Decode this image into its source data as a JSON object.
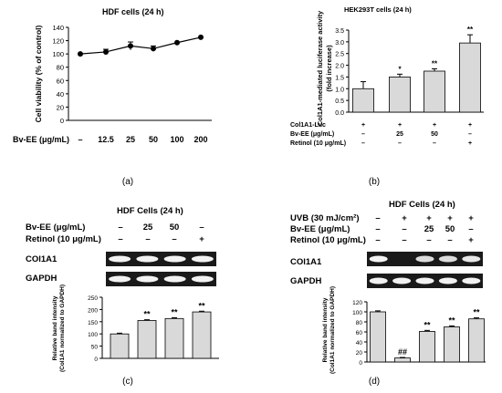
{
  "chart_data": [
    {
      "id": "a",
      "type": "line",
      "title": "HDF cells (24 h)",
      "ylabel": "Cell viability (% of control)",
      "xlabel": "Bv-EE (μg/mL)",
      "categories": [
        "–",
        "12.5",
        "25",
        "50",
        "100",
        "200"
      ],
      "values": [
        100,
        103,
        112,
        108,
        117,
        125
      ],
      "errors": [
        2,
        4,
        6,
        4,
        2,
        2
      ],
      "ylim": [
        0,
        140
      ],
      "yticks": [
        "0",
        "20",
        "40",
        "60",
        "80",
        "100",
        "120",
        "140"
      ],
      "panel_label": "(a)"
    },
    {
      "id": "b",
      "type": "bar",
      "title": "HEK293T cells (24 h)",
      "ylabel": "Col1A1-mediated luciferase activity",
      "ylabel2": "(fold increase)",
      "values": [
        1.0,
        1.5,
        1.75,
        2.95
      ],
      "errors": [
        0.3,
        0.12,
        0.1,
        0.35
      ],
      "significance": [
        "",
        "*",
        "**",
        "**"
      ],
      "ylim": [
        0,
        3.5
      ],
      "yticks": [
        "0.0",
        "0.5",
        "1.0",
        "1.5",
        "2.0",
        "2.5",
        "3.0",
        "3.5"
      ],
      "conditions": [
        {
          "label": "Col1A1-Luc",
          "cells": [
            "+",
            "+",
            "+",
            "+"
          ]
        },
        {
          "label": "Bv-EE (μg/mL)",
          "cells": [
            "–",
            "25",
            "50",
            "–"
          ]
        },
        {
          "label": "Retinol (10 μg/mL)",
          "cells": [
            "–",
            "–",
            "–",
            "+"
          ]
        }
      ],
      "panel_label": "(b)"
    },
    {
      "id": "c",
      "type": "bar",
      "title": "HDF Cells (24 h)",
      "ylabel": "Relative band intensity",
      "ylabel2": "(Col1A1 normalized to GAPDH)",
      "values": [
        100,
        155,
        163,
        190
      ],
      "errors": [
        3,
        3,
        3,
        3
      ],
      "significance": [
        "",
        "**",
        "**",
        "**"
      ],
      "ylim": [
        0,
        250
      ],
      "yticks": [
        "0",
        "50",
        "100",
        "150",
        "200",
        "250"
      ],
      "conditions": [
        {
          "label": "Bv-EE (μg/mL)",
          "cells": [
            "–",
            "25",
            "50",
            "–"
          ]
        },
        {
          "label": "Retinol (10 μg/mL)",
          "cells": [
            "–",
            "–",
            "–",
            "+"
          ]
        }
      ],
      "blots": [
        "COl1A1",
        "GAPDH"
      ],
      "panel_label": "(c)"
    },
    {
      "id": "d",
      "type": "bar",
      "title": "HDF Cells (24 h)",
      "ylabel": "Relative band intensity",
      "ylabel2": "(Col1A1 normalized to GAPDH)",
      "values": [
        100,
        8,
        61,
        70,
        86
      ],
      "errors": [
        2,
        1,
        2,
        2,
        2
      ],
      "significance": [
        "",
        "##",
        "**",
        "**",
        "**"
      ],
      "ylim": [
        0,
        120
      ],
      "yticks": [
        "0",
        "20",
        "40",
        "60",
        "80",
        "100",
        "120"
      ],
      "conditions": [
        {
          "label": "UVB (30 mJ/cm²)",
          "cells": [
            "–",
            "+",
            "+",
            "+",
            "+"
          ]
        },
        {
          "label": "Bv-EE (μg/mL)",
          "cells": [
            "–",
            "–",
            "25",
            "50",
            "–"
          ]
        },
        {
          "label": "Retinol (10 μg/mL)",
          "cells": [
            "–",
            "–",
            "–",
            "–",
            "+"
          ]
        }
      ],
      "blots": [
        "COl1A1",
        "GAPDH"
      ],
      "panel_label": "(d)"
    }
  ]
}
